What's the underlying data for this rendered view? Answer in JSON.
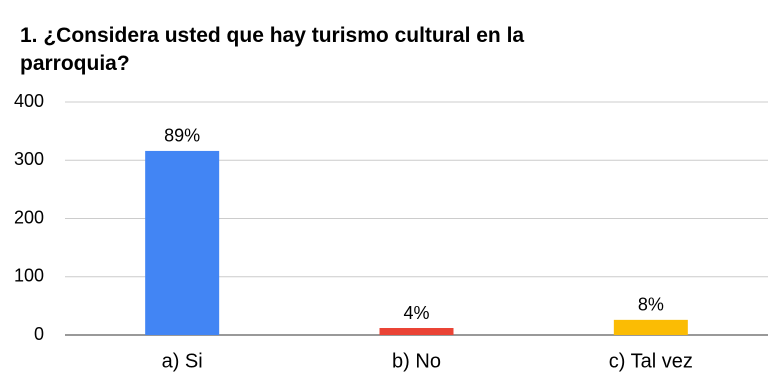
{
  "chart_data": {
    "type": "bar",
    "title": "1. ¿Considera usted que hay turismo cultural en la parroquia?",
    "categories": [
      "a) Si",
      "b) No",
      "c) Tal vez"
    ],
    "values": [
      316,
      12,
      26
    ],
    "value_labels": [
      "89%",
      "4%",
      "8%"
    ],
    "colors": [
      "#4285f4",
      "#ea4335",
      "#fbbc04"
    ],
    "ylim": [
      0,
      400
    ],
    "yticks": [
      0,
      100,
      200,
      300,
      400
    ],
    "grid": true
  }
}
